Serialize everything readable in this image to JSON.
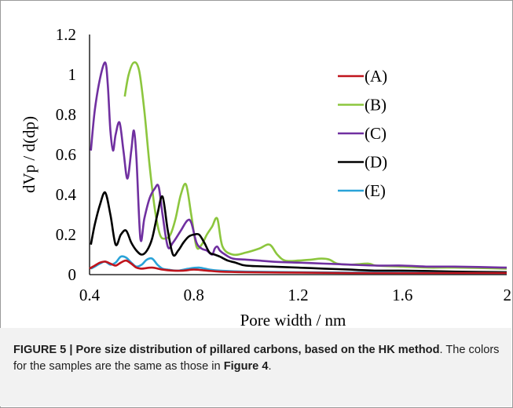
{
  "caption": {
    "label": "FIGURE 5 | Pore size distribution of pillared carbons, based on the HK method",
    "text": ". The colors for the samples are the same as those in ",
    "ref": "Figure 4",
    "end": "."
  },
  "chart_data": {
    "type": "line",
    "title": "",
    "xlabel": "Pore width / nm",
    "ylabel": "dVp / d(dp)",
    "xlim": [
      0.4,
      2.0
    ],
    "ylim": [
      0,
      1.2
    ],
    "xticks": [
      "0.4",
      "0.8",
      "1.2",
      "1.6",
      "2"
    ],
    "yticks": [
      "0",
      "0.2",
      "0.4",
      "0.6",
      "0.8",
      "1",
      "1.2"
    ],
    "xtick_values": [
      0.4,
      0.8,
      1.2,
      1.6,
      2.0
    ],
    "ytick_values": [
      0,
      0.2,
      0.4,
      0.6,
      0.8,
      1.0,
      1.2
    ],
    "grid": false,
    "legend_position": "top-right",
    "series": [
      {
        "name": "(A)",
        "color": "#c0141c",
        "x": [
          0.4,
          0.42,
          0.44,
          0.46,
          0.48,
          0.5,
          0.52,
          0.54,
          0.56,
          0.58,
          0.6,
          0.64,
          0.68,
          0.72,
          0.76,
          0.8,
          0.85,
          0.9,
          1.0,
          1.2,
          1.4,
          1.6,
          1.8,
          2.0
        ],
        "y": [
          0.03,
          0.045,
          0.06,
          0.065,
          0.055,
          0.045,
          0.06,
          0.07,
          0.055,
          0.035,
          0.03,
          0.035,
          0.025,
          0.02,
          0.02,
          0.025,
          0.02,
          0.015,
          0.012,
          0.01,
          0.008,
          0.008,
          0.008,
          0.008
        ]
      },
      {
        "name": "(B)",
        "color": "#8cc63e",
        "x": [
          0.535,
          0.55,
          0.57,
          0.59,
          0.61,
          0.63,
          0.65,
          0.67,
          0.69,
          0.71,
          0.73,
          0.75,
          0.77,
          0.79,
          0.81,
          0.83,
          0.85,
          0.87,
          0.89,
          0.91,
          0.95,
          1.0,
          1.05,
          1.09,
          1.12,
          1.15,
          1.2,
          1.25,
          1.29,
          1.32,
          1.35,
          1.4,
          1.47,
          1.5,
          1.6,
          1.7,
          1.8,
          2.0
        ],
        "y": [
          0.89,
          1.0,
          1.06,
          1.02,
          0.82,
          0.55,
          0.33,
          0.2,
          0.18,
          0.2,
          0.28,
          0.4,
          0.45,
          0.3,
          0.14,
          0.15,
          0.2,
          0.24,
          0.28,
          0.14,
          0.1,
          0.11,
          0.13,
          0.15,
          0.1,
          0.07,
          0.07,
          0.075,
          0.08,
          0.075,
          0.055,
          0.05,
          0.055,
          0.045,
          0.04,
          0.035,
          0.035,
          0.03
        ]
      },
      {
        "name": "(C)",
        "color": "#7030a0",
        "x": [
          0.405,
          0.42,
          0.44,
          0.46,
          0.47,
          0.48,
          0.49,
          0.5,
          0.515,
          0.53,
          0.545,
          0.56,
          0.57,
          0.58,
          0.595,
          0.61,
          0.63,
          0.65,
          0.665,
          0.68,
          0.7,
          0.72,
          0.75,
          0.775,
          0.79,
          0.81,
          0.83,
          0.85,
          0.87,
          0.88,
          0.89,
          0.9,
          0.92,
          0.95,
          1.0,
          1.05,
          1.1,
          1.2,
          1.3,
          1.4,
          1.5,
          1.6,
          1.7,
          1.8,
          2.0
        ],
        "y": [
          0.62,
          0.82,
          0.98,
          1.06,
          0.95,
          0.72,
          0.62,
          0.7,
          0.76,
          0.62,
          0.48,
          0.62,
          0.72,
          0.58,
          0.18,
          0.28,
          0.38,
          0.43,
          0.44,
          0.3,
          0.14,
          0.16,
          0.22,
          0.27,
          0.26,
          0.16,
          0.13,
          0.12,
          0.1,
          0.13,
          0.14,
          0.12,
          0.1,
          0.08,
          0.075,
          0.07,
          0.065,
          0.06,
          0.055,
          0.05,
          0.045,
          0.045,
          0.04,
          0.04,
          0.035
        ]
      },
      {
        "name": "(D)",
        "color": "#000000",
        "x": [
          0.405,
          0.42,
          0.44,
          0.46,
          0.48,
          0.5,
          0.52,
          0.54,
          0.56,
          0.58,
          0.6,
          0.62,
          0.64,
          0.66,
          0.68,
          0.7,
          0.72,
          0.74,
          0.76,
          0.78,
          0.8,
          0.82,
          0.84,
          0.86,
          0.88,
          0.9,
          0.93,
          0.96,
          1.0,
          1.1,
          1.2,
          1.3,
          1.4,
          1.5,
          1.6,
          1.7,
          1.8,
          2.0
        ],
        "y": [
          0.15,
          0.25,
          0.35,
          0.41,
          0.3,
          0.15,
          0.2,
          0.22,
          0.16,
          0.12,
          0.1,
          0.12,
          0.18,
          0.3,
          0.39,
          0.22,
          0.1,
          0.12,
          0.16,
          0.19,
          0.2,
          0.2,
          0.16,
          0.11,
          0.1,
          0.09,
          0.07,
          0.06,
          0.045,
          0.04,
          0.035,
          0.03,
          0.025,
          0.02,
          0.02,
          0.018,
          0.015,
          0.012
        ]
      },
      {
        "name": "(E)",
        "color": "#2aa3d8",
        "x": [
          0.405,
          0.42,
          0.44,
          0.46,
          0.48,
          0.5,
          0.52,
          0.54,
          0.56,
          0.58,
          0.6,
          0.62,
          0.64,
          0.66,
          0.68,
          0.7,
          0.74,
          0.78,
          0.82,
          0.86,
          0.9,
          1.0,
          1.2,
          1.4,
          1.6,
          1.8,
          2.0
        ],
        "y": [
          0.03,
          0.04,
          0.055,
          0.065,
          0.05,
          0.06,
          0.09,
          0.085,
          0.06,
          0.04,
          0.05,
          0.075,
          0.08,
          0.05,
          0.03,
          0.025,
          0.02,
          0.03,
          0.035,
          0.025,
          0.02,
          0.015,
          0.012,
          0.01,
          0.01,
          0.008,
          0.008
        ]
      }
    ]
  }
}
